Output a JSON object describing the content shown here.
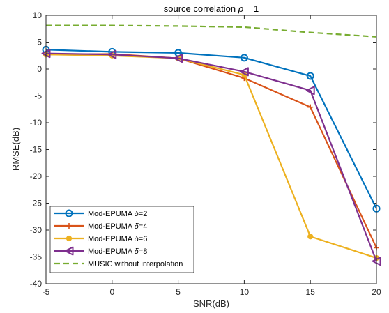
{
  "chart_data": {
    "type": "line",
    "title_prefix": "source correlation",
    "title_symbol": "ρ",
    "title_suffix": " = 1",
    "xlabel": "SNR(dB)",
    "ylabel": "RMSE(dB)",
    "xlim": [
      -5,
      20
    ],
    "ylim": [
      -40,
      10
    ],
    "xticks": [
      -5,
      0,
      5,
      10,
      15,
      20
    ],
    "yticks": [
      10,
      5,
      0,
      -5,
      -10,
      -15,
      -20,
      -25,
      -30,
      -35,
      -40
    ],
    "grid": false,
    "legend_position": "bottom-left",
    "x": [
      -5,
      0,
      5,
      10,
      15,
      20
    ],
    "series": [
      {
        "name": "Mod-EPUMA ",
        "delta_symbol": "δ",
        "delta_value": "=2",
        "color": "#0072BD",
        "marker": "circle",
        "line": "solid",
        "values": [
          3.6,
          3.2,
          3.0,
          2.1,
          -1.3,
          -26.0
        ]
      },
      {
        "name": "Mod-EPUMA ",
        "delta_symbol": "δ",
        "delta_value": "=4",
        "color": "#D95319",
        "marker": "plus",
        "line": "solid",
        "values": [
          2.7,
          2.8,
          2.0,
          -1.7,
          -7.1,
          -33.3
        ]
      },
      {
        "name": "Mod-EPUMA ",
        "delta_symbol": "δ",
        "delta_value": "=6",
        "color": "#EDB120",
        "marker": "dot",
        "line": "solid",
        "values": [
          2.7,
          2.5,
          2.0,
          -1.1,
          -31.2,
          -35.2
        ]
      },
      {
        "name": "Mod-EPUMA ",
        "delta_symbol": "δ",
        "delta_value": "=8",
        "color": "#7E2F8E",
        "marker": "triangle-left",
        "line": "solid",
        "values": [
          2.9,
          2.7,
          2.0,
          -0.5,
          -4.0,
          -35.8
        ]
      },
      {
        "name": "MUSIC without interpolation",
        "delta_symbol": "",
        "delta_value": "",
        "color": "#77AC30",
        "marker": "none",
        "line": "dashed",
        "values": [
          8.1,
          8.1,
          8.0,
          7.8,
          6.8,
          6.0
        ]
      }
    ]
  }
}
